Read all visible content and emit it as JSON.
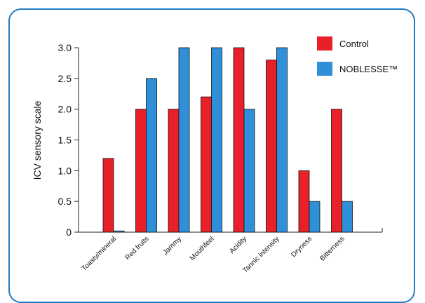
{
  "chart_data": {
    "type": "bar",
    "title": "",
    "xlabel": "",
    "ylabel": "ICV sensory scale",
    "ylim": [
      0,
      3.0
    ],
    "yticks": [
      "0",
      "0.5",
      "1.0",
      "1.5",
      "2.0",
      "2.5",
      "3.0"
    ],
    "categories": [
      "Toasty/mineral",
      "Red fruits",
      "Jammy",
      "Mouthfeel",
      "Acidity",
      "Tannic intensity",
      "Dryness",
      "Bitterness"
    ],
    "series": [
      {
        "name": "Control",
        "color": "#e8202a",
        "values": [
          1.2,
          2.0,
          2.0,
          2.2,
          3.0,
          2.8,
          1.0,
          2.0
        ]
      },
      {
        "name": "NOBLESSE™",
        "color": "#2f8fd8",
        "values": [
          0.02,
          2.5,
          3.0,
          3.0,
          2.0,
          3.0,
          0.5,
          0.5
        ]
      }
    ],
    "legend_position": "top-right",
    "grid": false
  },
  "frame_color": "#1f7bc1"
}
